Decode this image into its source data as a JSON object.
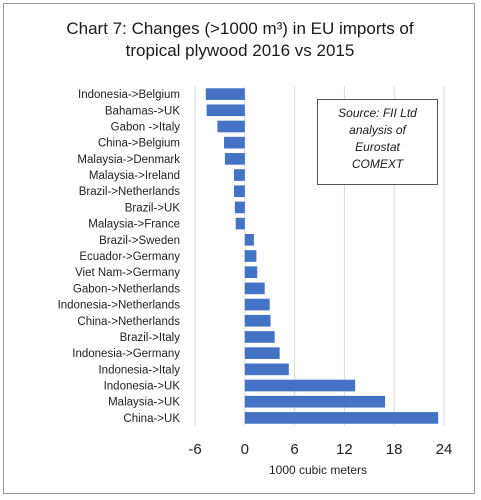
{
  "chart_data": {
    "type": "bar",
    "orientation": "horizontal",
    "title_lines": [
      "Chart 7: Changes (>1000 m³) in EU imports of",
      "tropical plywood 2016 vs 2015"
    ],
    "xlabel": "1000 cubic meters",
    "ylabel": "",
    "xlim": [
      -6,
      24
    ],
    "xticks": [
      "-6",
      "0",
      "6",
      "12",
      "18",
      "24"
    ],
    "grid": "vertical",
    "bar_color": "#4472c4",
    "annotation_lines": [
      "Source: FII Ltd",
      "analysis of",
      "Eurostat",
      "COMEXT"
    ],
    "categories": [
      "Indonesia->Belgium",
      "Bahamas->UK",
      "Gabon ->Italy",
      "China->Belgium",
      "Malaysia->Denmark",
      "Malaysia->Ireland",
      "Brazil->Netherlands",
      "Brazil->UK",
      "Malaysia->France",
      "Brazil->Sweden",
      "Ecuador->Germany",
      "Viet Nam->Germany",
      "Gabon->Netherlands",
      "Indonesia->Netherlands",
      "China->Netherlands",
      "Brazil->Italy",
      "Indonesia->Germany",
      "Indonesia->Italy",
      "Indonesia->UK",
      "Malaysia->UK",
      "China->UK"
    ],
    "values": [
      -4.7,
      -4.6,
      -3.3,
      -2.5,
      -2.4,
      -1.3,
      -1.3,
      -1.2,
      -1.1,
      1.1,
      1.4,
      1.5,
      2.4,
      3.0,
      3.1,
      3.6,
      4.2,
      5.3,
      13.3,
      16.9,
      23.3
    ]
  }
}
